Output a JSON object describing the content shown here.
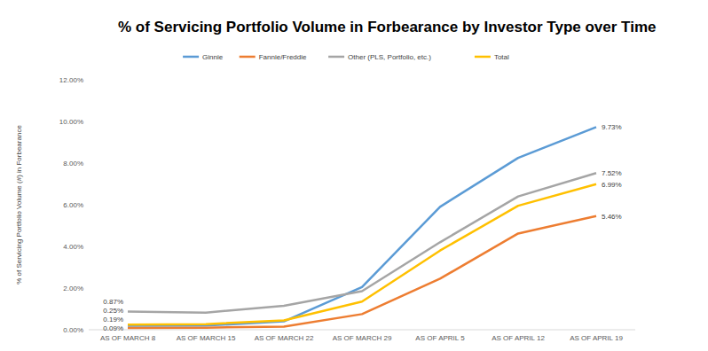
{
  "chart_data": {
    "type": "line",
    "title": "% of Servicing Portfolio Volume in Forbearance by Investor Type over Time",
    "y_label": "% of Servicing Portfolio Volume (#) in Forbearance",
    "categories": [
      "AS OF MARCH 8",
      "AS OF MARCH 15",
      "AS OF MARCH 22",
      "AS OF MARCH 29",
      "AS OF APRIL 5",
      "AS OF APRIL 12",
      "AS OF APRIL 19"
    ],
    "series": [
      {
        "name": "Ginnie",
        "color": "#5b9bd5",
        "values": [
          0.19,
          0.2,
          0.4,
          2.05,
          5.9,
          8.25,
          9.73
        ],
        "value_labels": [
          "0.19%",
          null,
          null,
          null,
          null,
          null,
          "9.73%"
        ]
      },
      {
        "name": "Fannie/Freddie",
        "color": "#ed7d31",
        "values": [
          0.09,
          0.1,
          0.15,
          0.75,
          2.45,
          4.62,
          5.46
        ],
        "value_labels": [
          "0.09%",
          null,
          null,
          null,
          null,
          null,
          "5.46%"
        ]
      },
      {
        "name": "Other (PLS, Portfolio, etc.)",
        "color": "#a5a5a5",
        "values": [
          0.87,
          0.82,
          1.15,
          1.85,
          4.2,
          6.4,
          7.52
        ],
        "value_labels": [
          "0.87%",
          null,
          null,
          null,
          null,
          null,
          "7.52%"
        ]
      },
      {
        "name": "Total",
        "color": "#ffc000",
        "values": [
          0.25,
          0.27,
          0.45,
          1.35,
          3.8,
          5.95,
          6.99
        ],
        "value_labels": [
          "0.25%",
          null,
          null,
          null,
          null,
          null,
          "6.99%"
        ]
      }
    ],
    "ylim": [
      0,
      12
    ],
    "yticks": [
      {
        "value": 0,
        "label": "0.00%"
      },
      {
        "value": 2,
        "label": "2.00%"
      },
      {
        "value": 4,
        "label": "4.00%"
      },
      {
        "value": 6,
        "label": "6.00%"
      },
      {
        "value": 8,
        "label": "8.00%"
      },
      {
        "value": 10,
        "label": "10.00%"
      },
      {
        "value": 12,
        "label": "12.00%"
      }
    ],
    "grid": false,
    "legend": "top",
    "data_labels": true
  }
}
